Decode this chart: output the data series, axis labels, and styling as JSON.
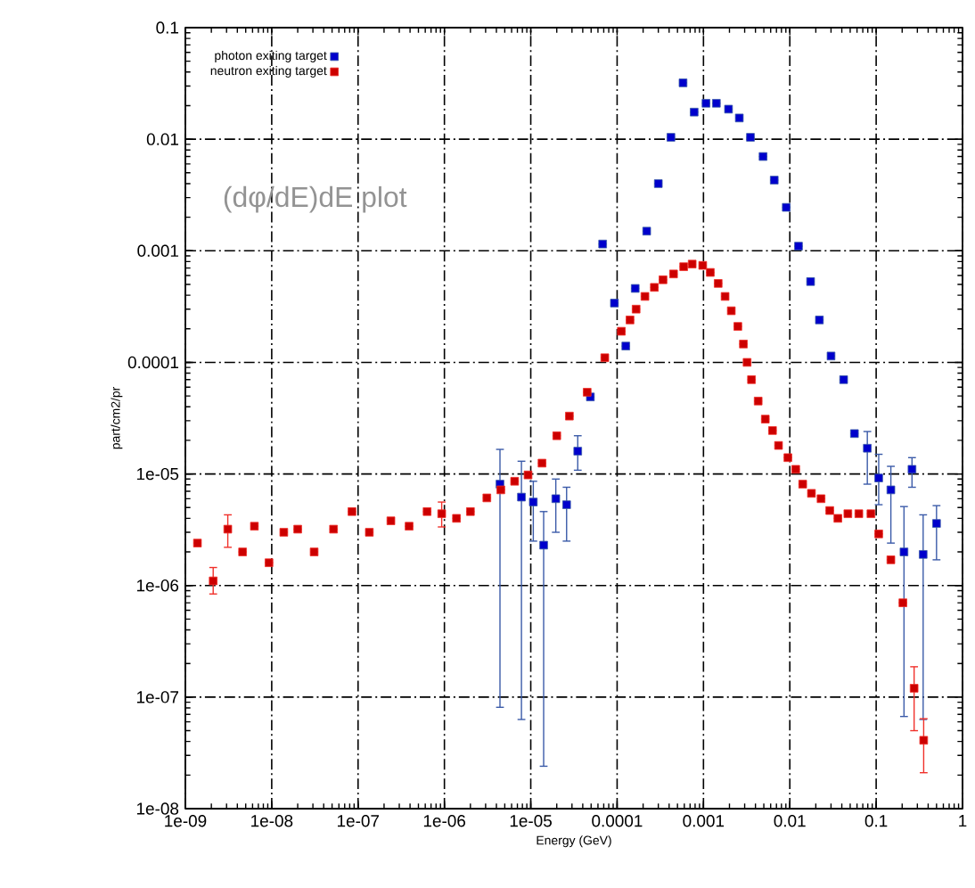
{
  "chart_data": {
    "type": "scatter",
    "xlabel": "Energy (GeV)",
    "ylabel": "part/cm2/pr",
    "annotations": [
      "(dφ/dE)dE plot"
    ],
    "log": "xy",
    "grid": true,
    "legend": "top left",
    "marker": "square",
    "xlim": [
      1e-09,
      1
    ],
    "ylim": [
      1e-08,
      0.1
    ],
    "xticks": [
      {
        "value": 1e-09,
        "label": "1e-09"
      },
      {
        "value": 1e-08,
        "label": "1e-08"
      },
      {
        "value": 1e-07,
        "label": "1e-07"
      },
      {
        "value": 1e-06,
        "label": "1e-06"
      },
      {
        "value": 1e-05,
        "label": "1e-05"
      },
      0.0001,
      0.001,
      0.01,
      0.1,
      1
    ],
    "yticks": [
      {
        "value": 1e-08,
        "label": "1e-08"
      },
      {
        "value": 1e-07,
        "label": "1e-07"
      },
      {
        "value": 1e-06,
        "label": "1e-06"
      },
      {
        "value": 1e-05,
        "label": "1e-05"
      },
      0.0001,
      0.001,
      0.01,
      0.1
    ],
    "series": [
      {
        "name": "photon exiting target",
        "color": "#3a5aa8",
        "x": [
          4.4e-06,
          7.8e-06,
          1.07e-05,
          1.41e-05,
          1.95e-05,
          2.6e-05,
          3.5e-05,
          4.9e-05,
          6.8e-05,
          9.3e-05,
          0.000126,
          0.000162,
          0.00022,
          0.0003,
          0.00042,
          0.00058,
          0.00078,
          0.00107,
          0.00141,
          0.00195,
          0.0026,
          0.0035,
          0.0049,
          0.0066,
          0.0091,
          0.0126,
          0.0174,
          0.022,
          0.03,
          0.042,
          0.056,
          0.079,
          0.107,
          0.148,
          0.21,
          0.26,
          0.35,
          0.5
        ],
        "values": [
          8.1e-06,
          6.2e-06,
          5.6e-06,
          2.3e-06,
          6e-06,
          5.3e-06,
          1.6e-05,
          4.9e-05,
          0.00115,
          0.00034,
          0.00014,
          0.00046,
          0.0015,
          0.004,
          0.0104,
          0.032,
          0.0175,
          0.021,
          0.021,
          0.0186,
          0.0155,
          0.0104,
          0.007,
          0.0043,
          0.00245,
          0.0011,
          0.00053,
          0.00024,
          0.000114,
          7e-05,
          2.3e-05,
          1.7e-05,
          9.2e-06,
          7.2e-06,
          2e-06,
          1.1e-05,
          1.9e-06,
          3.6e-06
        ],
        "errors": [
          [
            8.1e-08,
            1.66e-05
          ],
          [
            6.3e-08,
            1.3e-05
          ],
          [
            2.5e-06,
            8.6e-06
          ],
          [
            2.4e-08,
            4.6e-06
          ],
          [
            3e-06,
            9e-06
          ],
          [
            2.5e-06,
            7.6e-06
          ],
          [
            1.08e-05,
            2.2e-05
          ],
          null,
          null,
          null,
          null,
          null,
          null,
          null,
          null,
          null,
          null,
          null,
          null,
          null,
          null,
          null,
          null,
          null,
          null,
          null,
          null,
          null,
          null,
          null,
          null,
          [
            8.1e-06,
            2.4e-05
          ],
          [
            5.3e-06,
            1.5e-05
          ],
          [
            2.4e-06,
            1.17e-05
          ],
          [
            6.7e-08,
            5.1e-06
          ],
          [
            7.6e-06,
            1.4e-05
          ],
          [
            6.3e-08,
            4.3e-06
          ],
          [
            1.7e-06,
            5.2e-06
          ]
        ]
      },
      {
        "name": "neutron exiting target",
        "color": "#f0302a",
        "x": [
          1.38e-09,
          2.1e-09,
          3.1e-09,
          4.6e-09,
          6.3e-09,
          9.3e-09,
          1.38e-08,
          2e-08,
          3.1e-08,
          5.2e-08,
          8.5e-08,
          1.35e-07,
          2.4e-07,
          3.9e-07,
          6.3e-07,
          9.3e-07,
          1.38e-06,
          2e-06,
          3.1e-06,
          4.5e-06,
          6.5e-06,
          9.3e-06,
          1.35e-05,
          2e-05,
          2.8e-05,
          4.5e-05,
          7.2e-05,
          0.000112,
          0.000141,
          0.000166,
          0.00021,
          0.00027,
          0.00034,
          0.00045,
          0.00059,
          0.00074,
          0.00098,
          0.0012,
          0.00148,
          0.00178,
          0.0021,
          0.0025,
          0.0029,
          0.0032,
          0.0036,
          0.0043,
          0.0052,
          0.0063,
          0.0074,
          0.0095,
          0.0117,
          0.0141,
          0.0178,
          0.023,
          0.029,
          0.036,
          0.047,
          0.063,
          0.087,
          0.107,
          0.148,
          0.204,
          0.275,
          0.355
        ],
        "values": [
          2.4e-06,
          1.1e-06,
          3.2e-06,
          2e-06,
          3.4e-06,
          1.6e-06,
          3e-06,
          3.2e-06,
          2e-06,
          3.2e-06,
          4.6e-06,
          3e-06,
          3.8e-06,
          3.4e-06,
          4.6e-06,
          4.4e-06,
          4e-06,
          4.6e-06,
          6.1e-06,
          7.2e-06,
          8.6e-06,
          9.8e-06,
          1.25e-05,
          2.2e-05,
          3.3e-05,
          5.4e-05,
          0.00011,
          0.00019,
          0.00024,
          0.0003,
          0.00039,
          0.00047,
          0.00055,
          0.00062,
          0.00072,
          0.00076,
          0.00074,
          0.00064,
          0.00051,
          0.00039,
          0.00029,
          0.00021,
          0.000146,
          0.0001,
          7e-05,
          4.5e-05,
          3.1e-05,
          2.45e-05,
          1.8e-05,
          1.4e-05,
          1.1e-05,
          8.1e-06,
          6.7e-06,
          6e-06,
          4.7e-06,
          4e-06,
          4.4e-06,
          4.4e-06,
          4.4e-06,
          2.9e-06,
          1.7e-06,
          7e-07,
          1.2e-07,
          4.1e-08
        ],
        "errors": [
          null,
          [
            8.4e-07,
            1.45e-06
          ],
          [
            2.2e-06,
            4.3e-06
          ],
          null,
          null,
          null,
          null,
          null,
          null,
          null,
          null,
          null,
          null,
          null,
          null,
          [
            3.35e-06,
            5.6e-06
          ],
          null,
          null,
          null,
          null,
          null,
          null,
          null,
          null,
          null,
          null,
          null,
          null,
          null,
          null,
          null,
          null,
          null,
          null,
          null,
          null,
          null,
          null,
          null,
          null,
          null,
          null,
          null,
          null,
          null,
          null,
          null,
          null,
          null,
          null,
          null,
          null,
          null,
          null,
          null,
          null,
          null,
          null,
          null,
          null,
          null,
          null,
          [
            5e-08,
            1.87e-07
          ],
          [
            2.1e-08,
            6.4e-08
          ]
        ]
      }
    ]
  }
}
